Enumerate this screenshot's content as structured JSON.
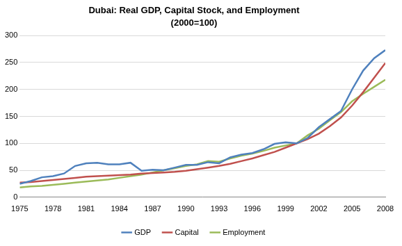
{
  "chart_data": {
    "type": "line",
    "title": "Dubai: Real GDP, Capital Stock, and Employment",
    "subtitle": "(2000=100)",
    "x": [
      1975,
      1976,
      1977,
      1978,
      1979,
      1980,
      1981,
      1982,
      1983,
      1984,
      1985,
      1986,
      1987,
      1988,
      1989,
      1990,
      1991,
      1992,
      1993,
      1994,
      1995,
      1996,
      1997,
      1998,
      1999,
      2000,
      2001,
      2002,
      2003,
      2004,
      2005,
      2006,
      2007,
      2008
    ],
    "series": [
      {
        "name": "GDP",
        "color": "#4f81bd",
        "values": [
          25,
          30,
          37,
          39,
          44,
          58,
          63,
          64,
          61,
          61,
          64,
          49,
          51,
          50,
          55,
          60,
          60,
          65,
          63,
          74,
          79,
          82,
          89,
          99,
          102,
          100,
          110,
          130,
          145,
          160,
          200,
          235,
          258,
          273
        ]
      },
      {
        "name": "Capital",
        "color": "#c0504d",
        "values": [
          27,
          28,
          30,
          32,
          34,
          36,
          38,
          39,
          40,
          41,
          42,
          44,
          45,
          46,
          47,
          49,
          52,
          55,
          58,
          62,
          67,
          72,
          78,
          84,
          92,
          100,
          108,
          118,
          132,
          148,
          170,
          195,
          222,
          249
        ]
      },
      {
        "name": "Employment",
        "color": "#9bbb59",
        "values": [
          18,
          20,
          21,
          23,
          25,
          27,
          29,
          31,
          33,
          36,
          39,
          42,
          46,
          50,
          54,
          58,
          61,
          67,
          66,
          72,
          77,
          81,
          86,
          92,
          96,
          100,
          115,
          127,
          143,
          158,
          178,
          192,
          205,
          218
        ]
      }
    ],
    "xlim": [
      1975,
      2008
    ],
    "xticks": [
      1975,
      1978,
      1981,
      1984,
      1987,
      1990,
      1993,
      1996,
      1999,
      2002,
      2005,
      2008
    ],
    "ylim": [
      0,
      300
    ],
    "yticks": [
      0,
      50,
      100,
      150,
      200,
      250,
      300
    ],
    "grid": true,
    "legend": "bottom"
  }
}
